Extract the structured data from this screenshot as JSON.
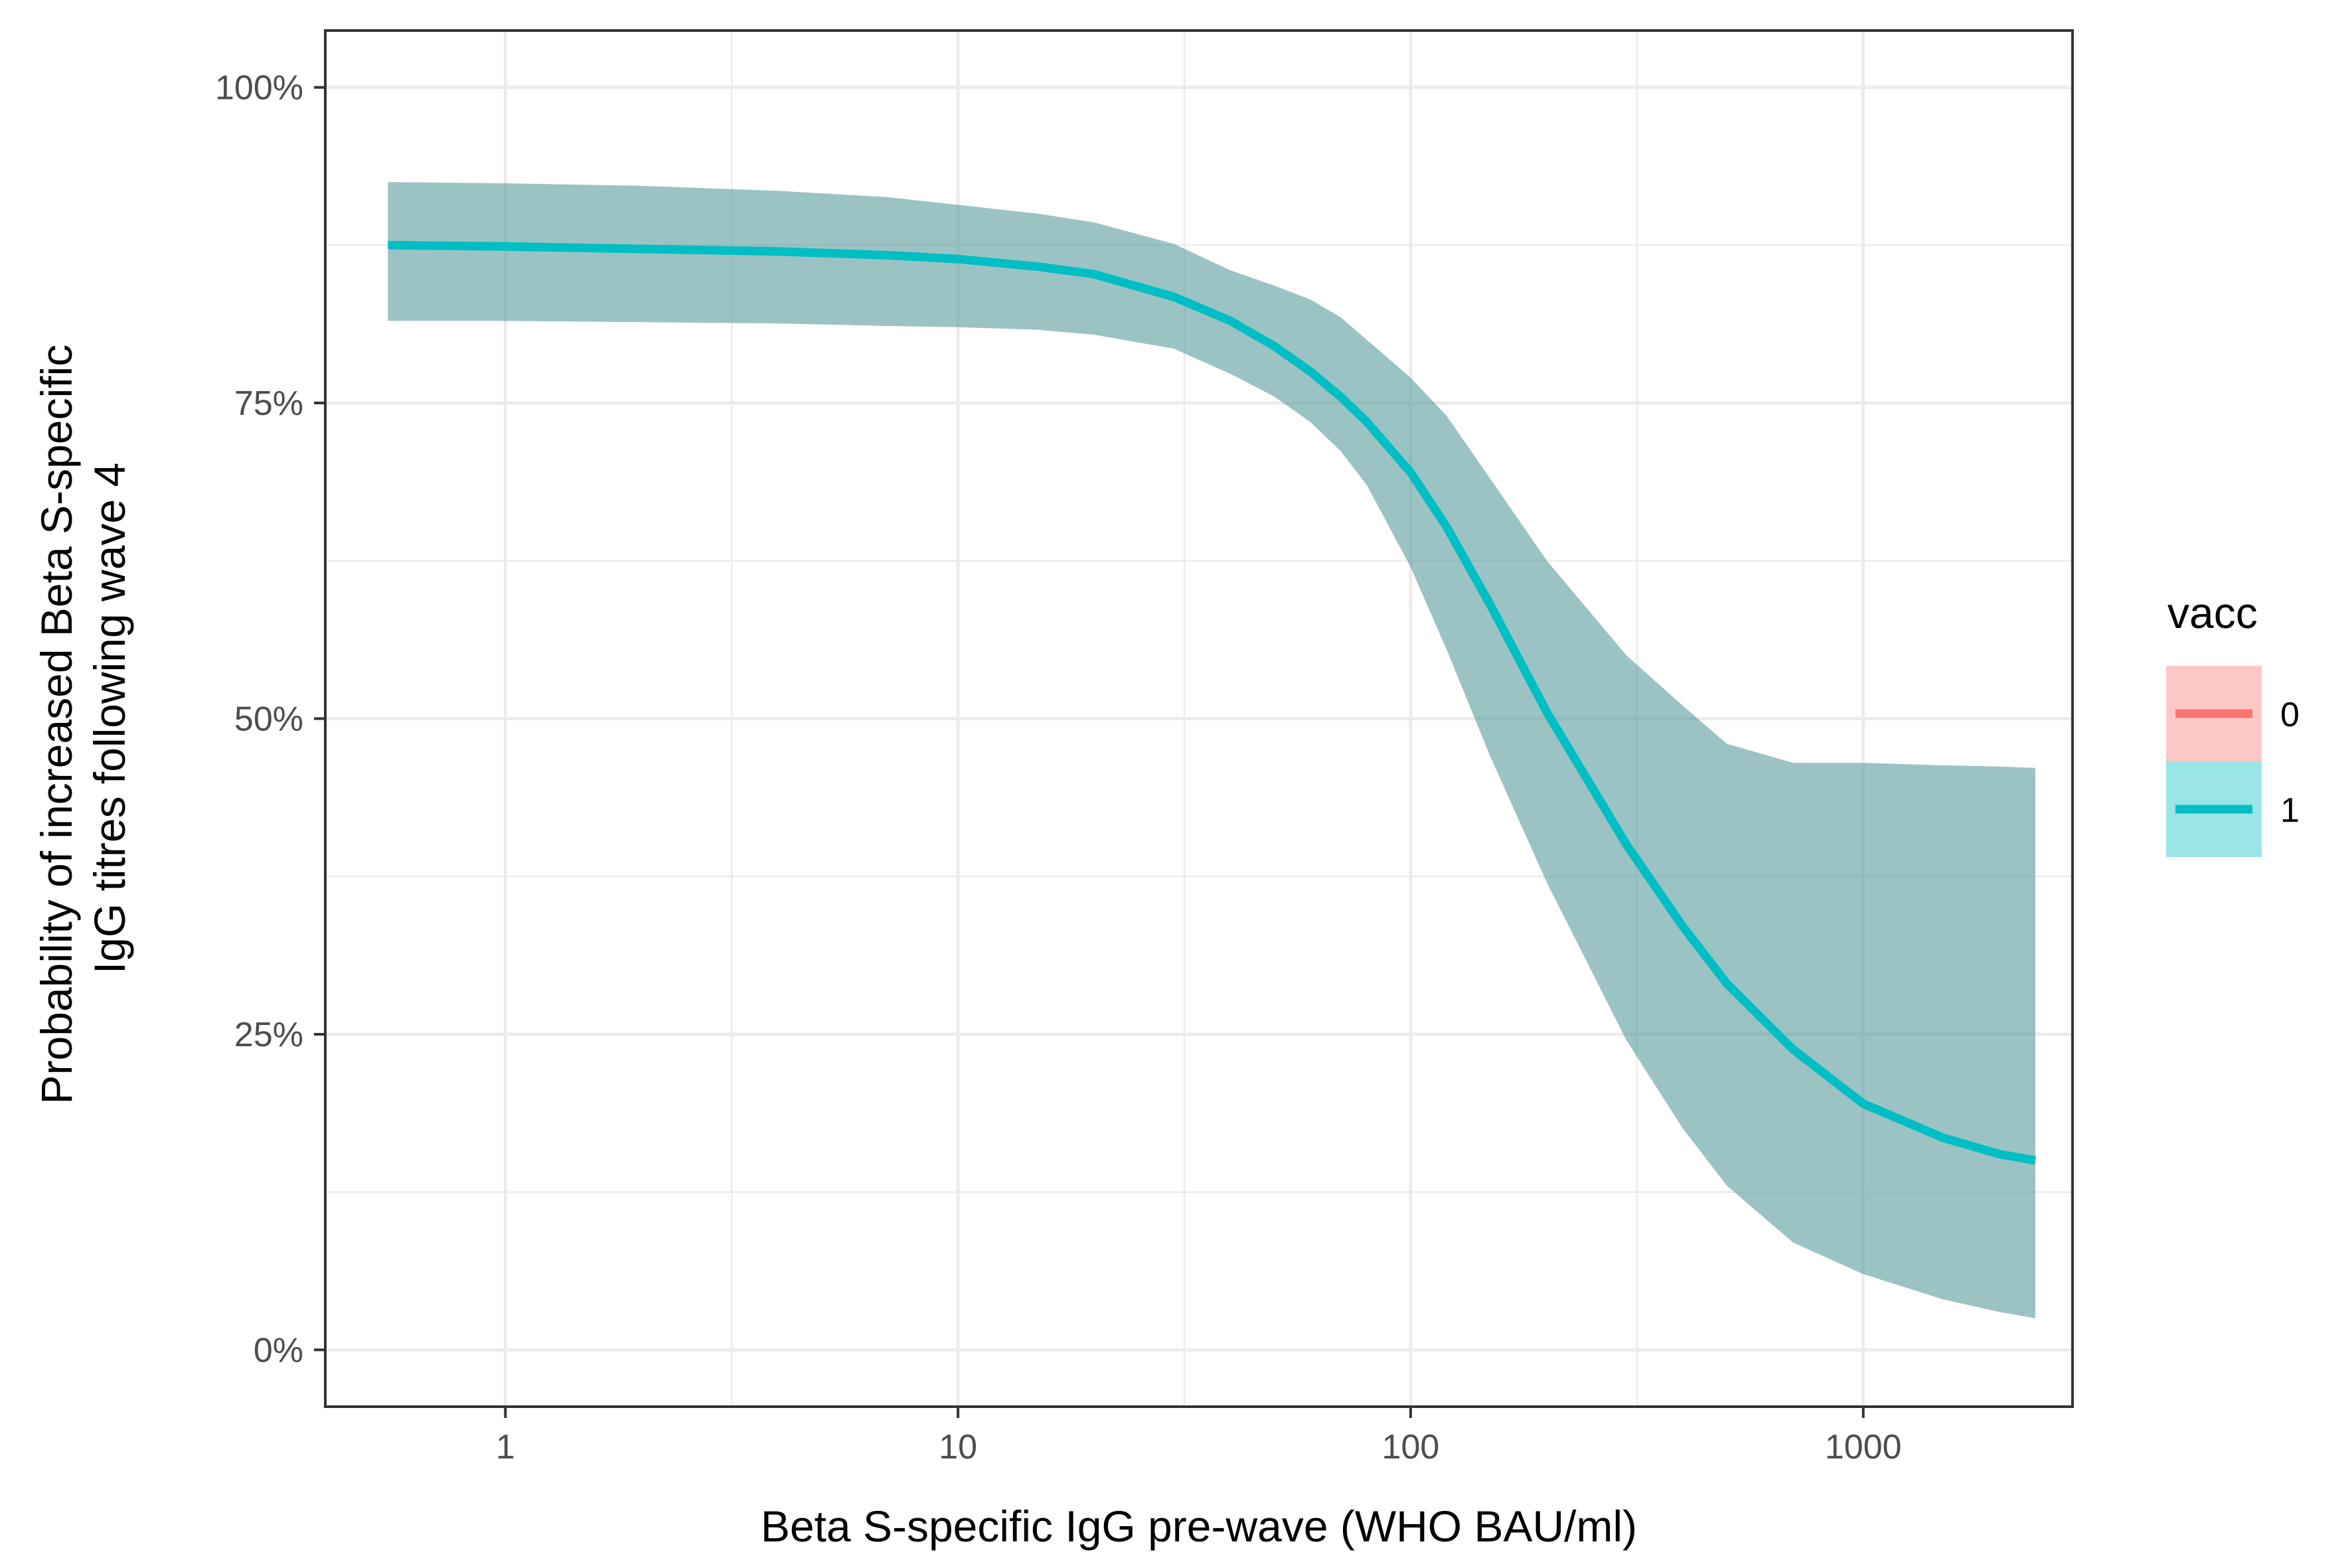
{
  "chart_data": {
    "type": "line",
    "title": "",
    "xlabel": "Beta S-specific IgG pre-wave (WHO BAU/ml)",
    "ylabel_lines": [
      "Probability of increased Beta S-specific",
      "IgG titres following wave 4"
    ],
    "x_scale": "log10",
    "xlim": [
      0.4,
      2900
    ],
    "ylim": [
      -0.045,
      1.045
    ],
    "x_ticks": [
      1,
      10,
      100,
      1000
    ],
    "x_tick_labels": [
      "1",
      "10",
      "100",
      "1000"
    ],
    "y_ticks": [
      0,
      0.25,
      0.5,
      0.75,
      1.0
    ],
    "y_tick_labels": [
      "0%",
      "25%",
      "50%",
      "75%",
      "100%"
    ],
    "grid": true,
    "legend": {
      "title": "vacc",
      "position": "right",
      "entries": [
        {
          "label": "0",
          "line_color": "#F8766D",
          "fill_color": "#F8766D"
        },
        {
          "label": "1",
          "line_color": "#00BFC4",
          "fill_color": "#00BFC4"
        }
      ]
    },
    "series": [
      {
        "name": "1",
        "line_color": "#00BFC4",
        "ribbon_color": "#5F9EA0",
        "x": [
          0.55,
          1,
          2,
          4,
          7,
          10,
          15,
          20,
          30,
          40,
          50,
          60,
          70,
          80,
          100,
          120,
          150,
          200,
          300,
          400,
          500,
          700,
          1000,
          1500,
          2000,
          2400
        ],
        "y": [
          0.875,
          0.874,
          0.872,
          0.87,
          0.867,
          0.864,
          0.858,
          0.852,
          0.834,
          0.815,
          0.795,
          0.775,
          0.755,
          0.735,
          0.695,
          0.652,
          0.59,
          0.505,
          0.4,
          0.335,
          0.29,
          0.238,
          0.195,
          0.168,
          0.155,
          0.15
        ],
        "lower": [
          0.815,
          0.815,
          0.814,
          0.813,
          0.811,
          0.81,
          0.808,
          0.804,
          0.793,
          0.773,
          0.755,
          0.735,
          0.712,
          0.685,
          0.62,
          0.555,
          0.47,
          0.37,
          0.245,
          0.175,
          0.13,
          0.085,
          0.06,
          0.04,
          0.03,
          0.025
        ],
        "upper": [
          0.925,
          0.924,
          0.922,
          0.918,
          0.913,
          0.907,
          0.9,
          0.893,
          0.876,
          0.855,
          0.843,
          0.832,
          0.818,
          0.8,
          0.77,
          0.74,
          0.69,
          0.625,
          0.55,
          0.51,
          0.48,
          0.465,
          0.465,
          0.463,
          0.462,
          0.461
        ]
      }
    ]
  }
}
